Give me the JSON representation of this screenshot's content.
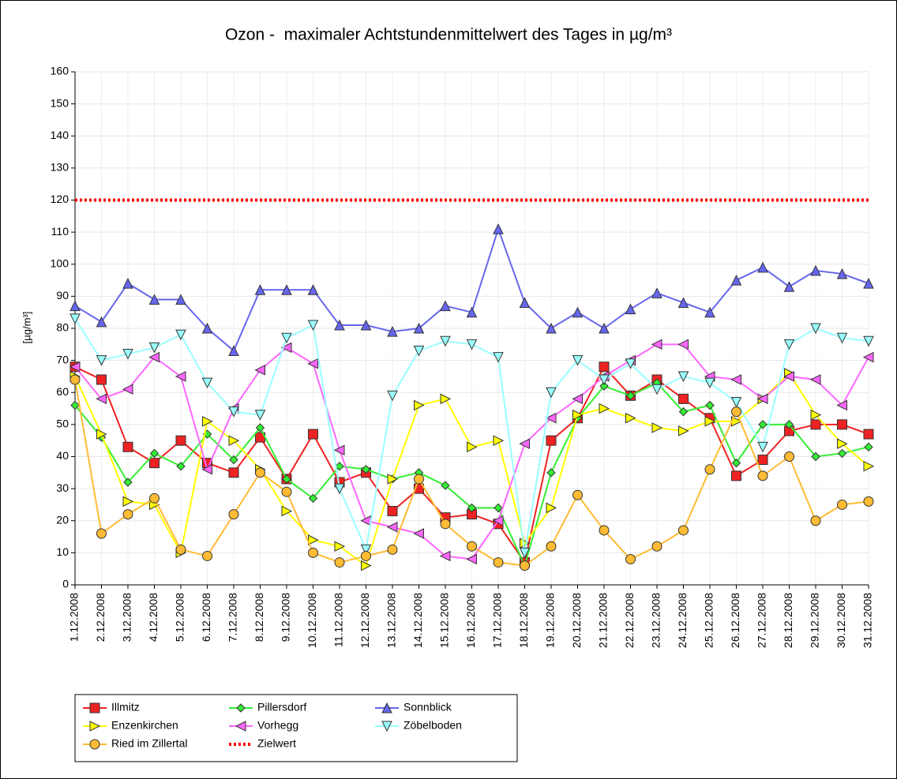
{
  "chart_data": {
    "type": "line",
    "title": "Ozon -  maximaler Achtstundenmittelwert des Tages in µg/m³",
    "ylabel": "[µg/m³]",
    "categories": [
      "1.12.2008",
      "2.12.2008",
      "3.12.2008",
      "4.12.2008",
      "5.12.2008",
      "6.12.2008",
      "7.12.2008",
      "8.12.2008",
      "9.12.2008",
      "10.12.2008",
      "11.12.2008",
      "12.12.2008",
      "13.12.2008",
      "14.12.2008",
      "15.12.2008",
      "16.12.2008",
      "17.12.2008",
      "18.12.2008",
      "19.12.2008",
      "20.12.2008",
      "21.12.2008",
      "22.12.2008",
      "23.12.2008",
      "24.12.2008",
      "25.12.2008",
      "26.12.2008",
      "27.12.2008",
      "28.12.2008",
      "29.12.2008",
      "30.12.2008",
      "31.12.2008"
    ],
    "ylim": [
      0,
      160
    ],
    "yticks": [
      0,
      10,
      20,
      30,
      40,
      50,
      60,
      70,
      80,
      90,
      100,
      110,
      120,
      130,
      140,
      150,
      160
    ],
    "grid": true,
    "series": [
      {
        "name": "Illmitz",
        "color": "#ee2222",
        "marker": "square",
        "values": [
          68,
          64,
          43,
          38,
          45,
          38,
          35,
          46,
          33,
          47,
          32,
          35,
          23,
          30,
          21,
          22,
          19,
          7,
          45,
          52,
          68,
          59,
          64,
          58,
          52,
          34,
          39,
          48,
          50,
          50,
          47
        ]
      },
      {
        "name": "Pillersdorf",
        "color": "#33ee33",
        "marker": "diamond",
        "values": [
          56,
          46,
          32,
          41,
          37,
          47,
          39,
          49,
          33,
          27,
          37,
          36,
          33,
          35,
          31,
          24,
          24,
          6,
          35,
          52,
          62,
          59,
          63,
          54,
          56,
          38,
          50,
          50,
          40,
          41,
          43
        ]
      },
      {
        "name": "Sonnblick",
        "color": "#6666ee",
        "marker": "triangle-up",
        "values": [
          87,
          82,
          94,
          89,
          89,
          80,
          73,
          92,
          92,
          92,
          81,
          81,
          79,
          80,
          87,
          85,
          111,
          88,
          80,
          85,
          80,
          86,
          91,
          88,
          85,
          95,
          99,
          93,
          98,
          97,
          94
        ]
      },
      {
        "name": "Enzenkirchen",
        "color": "#ffff00",
        "marker": "triangle-right",
        "values": [
          65,
          47,
          26,
          25,
          10,
          51,
          45,
          36,
          23,
          14,
          12,
          6,
          33,
          56,
          58,
          43,
          45,
          13,
          24,
          53,
          55,
          52,
          49,
          48,
          51,
          51,
          58,
          66,
          53,
          44,
          37
        ]
      },
      {
        "name": "Vorhegg",
        "color": "#ff66ff",
        "marker": "triangle-left",
        "values": [
          68,
          58,
          61,
          71,
          65,
          36,
          55,
          67,
          74,
          69,
          42,
          20,
          18,
          16,
          9,
          8,
          20,
          44,
          52,
          58,
          65,
          70,
          75,
          75,
          65,
          64,
          58,
          65,
          64,
          56,
          71
        ]
      },
      {
        "name": "Zöbelboden",
        "color": "#99ffff",
        "marker": "triangle-down",
        "values": [
          83,
          70,
          72,
          74,
          78,
          63,
          54,
          53,
          77,
          81,
          30,
          11,
          59,
          73,
          76,
          75,
          71,
          10,
          60,
          70,
          64,
          69,
          61,
          65,
          63,
          57,
          43,
          75,
          80,
          77,
          76
        ]
      },
      {
        "name": "Ried im Zillertal",
        "color": "#ffbb33",
        "marker": "circle",
        "values": [
          64,
          16,
          22,
          27,
          11,
          9,
          22,
          35,
          29,
          10,
          7,
          9,
          11,
          33,
          19,
          12,
          7,
          6,
          12,
          28,
          17,
          8,
          12,
          17,
          36,
          54,
          34,
          40,
          20,
          25,
          26
        ]
      },
      {
        "name": "Zielwert",
        "color": "#ff0000",
        "marker": "none",
        "dashed": true,
        "values": [
          120,
          120,
          120,
          120,
          120,
          120,
          120,
          120,
          120,
          120,
          120,
          120,
          120,
          120,
          120,
          120,
          120,
          120,
          120,
          120,
          120,
          120,
          120,
          120,
          120,
          120,
          120,
          120,
          120,
          120,
          120
        ]
      }
    ]
  }
}
